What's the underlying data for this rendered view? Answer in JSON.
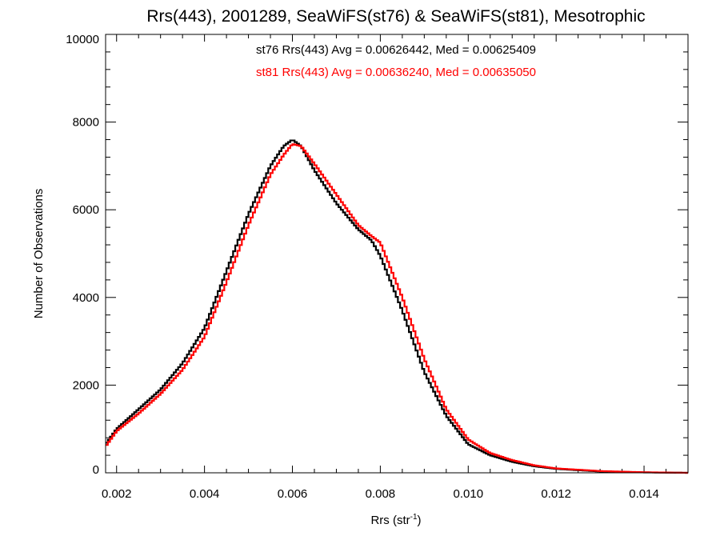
{
  "chart_data": {
    "type": "line",
    "step": true,
    "title": "Rrs(443), 2001289, SeaWiFS(st76) & SeaWiFS(st81), Mesotrophic",
    "xlabel": "Rrs (str",
    "xlabel_sup": "-1",
    "xlabel_end": ")",
    "ylabel": "Number of Observations",
    "xlim": [
      0.00175,
      0.015
    ],
    "ylim": [
      0,
      10000
    ],
    "xticks": [
      0.002,
      0.004,
      0.006,
      0.008,
      0.01,
      0.012,
      0.014
    ],
    "xtick_labels": [
      "0.002",
      "0.004",
      "0.006",
      "0.008",
      "0.010",
      "0.012",
      "0.014"
    ],
    "yticks": [
      0,
      2000,
      4000,
      6000,
      8000,
      10000
    ],
    "ytick_labels": [
      "0",
      "2000",
      "4000",
      "6000",
      "8000",
      "10000"
    ],
    "grid": false,
    "annotations": [
      {
        "text": "st76 Rrs(443) Avg = 0.00626442, Med = 0.00625409",
        "color": "#000000"
      },
      {
        "text": "st81 Rrs(443) Avg = 0.00636240, Med = 0.00635050",
        "color": "#ff0000"
      }
    ],
    "series": [
      {
        "label": "st76",
        "color": "#000000",
        "x": [
          0.00175,
          0.002,
          0.0025,
          0.003,
          0.0035,
          0.004,
          0.0045,
          0.005,
          0.0055,
          0.0058,
          0.006,
          0.0062,
          0.0065,
          0.007,
          0.0075,
          0.0078,
          0.008,
          0.0085,
          0.009,
          0.0095,
          0.01,
          0.0105,
          0.011,
          0.0115,
          0.012,
          0.013,
          0.014,
          0.015
        ],
        "y": [
          650,
          1000,
          1450,
          1900,
          2500,
          3300,
          4600,
          5900,
          7000,
          7450,
          7600,
          7450,
          6900,
          6150,
          5550,
          5300,
          4950,
          3700,
          2300,
          1300,
          650,
          400,
          250,
          150,
          90,
          30,
          10,
          0
        ]
      },
      {
        "label": "st81",
        "color": "#ff0000",
        "x": [
          0.00175,
          0.002,
          0.0025,
          0.003,
          0.0035,
          0.004,
          0.0045,
          0.005,
          0.0055,
          0.0058,
          0.006,
          0.0062,
          0.0065,
          0.007,
          0.0075,
          0.0078,
          0.008,
          0.0085,
          0.009,
          0.0095,
          0.01,
          0.0105,
          0.011,
          0.0115,
          0.012,
          0.013,
          0.014,
          0.015
        ],
        "y": [
          600,
          950,
          1350,
          1800,
          2350,
          3100,
          4350,
          5650,
          6800,
          7250,
          7500,
          7450,
          7050,
          6350,
          5650,
          5400,
          5250,
          4000,
          2600,
          1450,
          760,
          450,
          290,
          170,
          100,
          40,
          12,
          0
        ]
      }
    ]
  }
}
